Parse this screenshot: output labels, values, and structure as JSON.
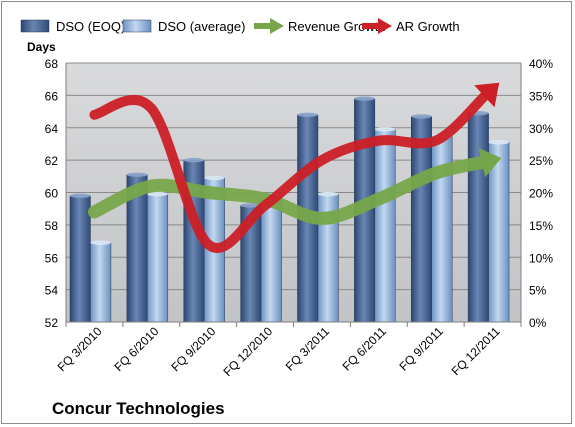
{
  "chart_data": {
    "type": "bar",
    "title": "Concur Technologies",
    "ylabel": "Days",
    "ylim": [
      52,
      68
    ],
    "yticks": [
      52,
      54,
      56,
      58,
      60,
      62,
      64,
      66,
      68
    ],
    "y2lim": [
      0,
      40
    ],
    "y2ticks": [
      "0%",
      "5%",
      "10%",
      "15%",
      "20%",
      "25%",
      "30%",
      "35%",
      "40%"
    ],
    "categories": [
      "FQ 3/2010",
      "FQ 6/2010",
      "FQ 9/2010",
      "FQ 12/2010",
      "FQ 3/2011",
      "FQ 6/2011",
      "FQ 9/2011",
      "FQ 12/2011"
    ],
    "series": [
      {
        "name": "DSO (EOQ)",
        "type": "bar",
        "axis": "left",
        "values": [
          59.8,
          61.1,
          62.0,
          59.2,
          64.8,
          65.8,
          64.7,
          64.9
        ],
        "color": "#4a6490"
      },
      {
        "name": "DSO (average)",
        "type": "bar",
        "axis": "left",
        "values": [
          56.9,
          59.9,
          60.9,
          59.6,
          59.9,
          63.9,
          63.5,
          63.1
        ],
        "color": "#8fb4dc"
      },
      {
        "name": "Revenue Growth",
        "type": "line",
        "axis": "right",
        "values": [
          17,
          21,
          20,
          19,
          16,
          19,
          23,
          25
        ],
        "color": "#77a64a"
      },
      {
        "name": "AR Growth",
        "type": "line",
        "axis": "right",
        "values": [
          32,
          33,
          12,
          18,
          25,
          28,
          28,
          36
        ],
        "color": "#cc1f26"
      }
    ],
    "grid": true,
    "legend": "top"
  }
}
